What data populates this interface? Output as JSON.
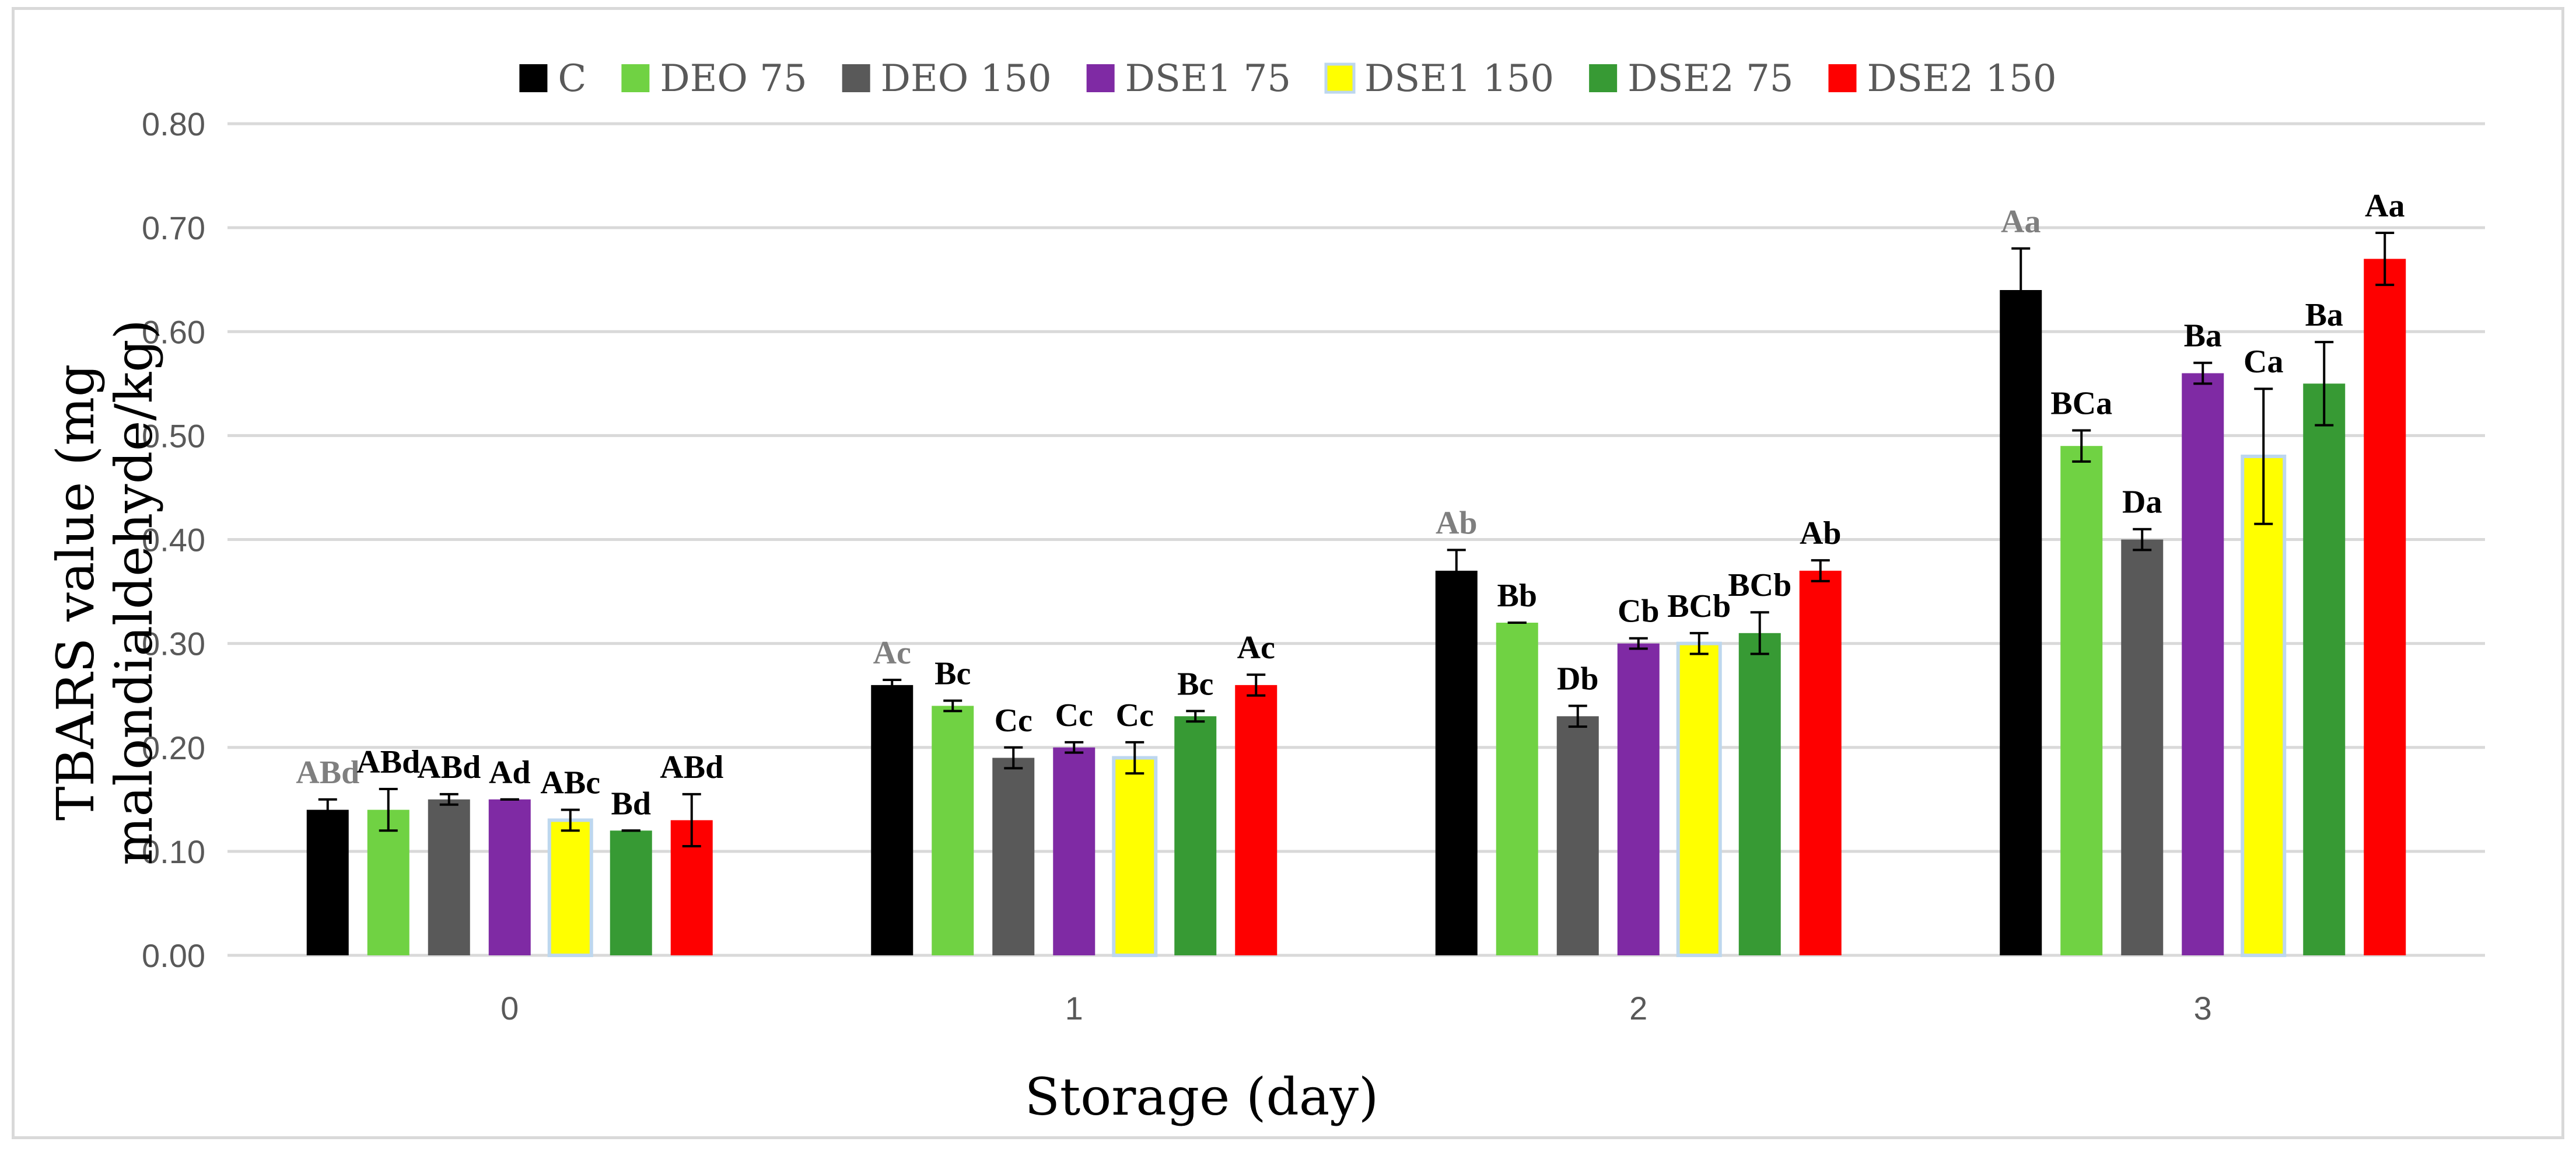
{
  "chart_data": {
    "type": "bar",
    "title": "",
    "xlabel": "Storage (day)",
    "ylabel_lines": [
      "TBARS value (mg",
      "malondialdehyde/kg)"
    ],
    "categories": [
      "0",
      "1",
      "2",
      "3"
    ],
    "ylim": [
      0,
      0.8
    ],
    "yticks": [
      "0.00",
      "0.10",
      "0.20",
      "0.30",
      "0.40",
      "0.50",
      "0.60",
      "0.70",
      "0.80"
    ],
    "grid": true,
    "legend_position": "top",
    "series": [
      {
        "name": "C",
        "color": "#000000",
        "values": [
          0.14,
          0.26,
          0.37,
          0.64
        ],
        "errors": [
          0.01,
          0.005,
          0.02,
          0.04
        ],
        "labels": [
          "ABd",
          "Ac",
          "Ab",
          "Aa"
        ],
        "label_color": "#7f7f7f"
      },
      {
        "name": "DEO  75",
        "color": "#70d243",
        "values": [
          0.14,
          0.24,
          0.32,
          0.49
        ],
        "errors": [
          0.02,
          0.005,
          0.0,
          0.015
        ],
        "labels": [
          "ABd",
          "Bc",
          "Bb",
          "BCa"
        ],
        "label_color": "#000000"
      },
      {
        "name": "DEO  150",
        "color": "#595959",
        "values": [
          0.15,
          0.19,
          0.23,
          0.4
        ],
        "errors": [
          0.005,
          0.01,
          0.01,
          0.01
        ],
        "labels": [
          "ABd",
          "Cc",
          "Db",
          "Da"
        ],
        "label_color": "#000000"
      },
      {
        "name": "DSE1  75",
        "color": "#7f2aa4",
        "values": [
          0.15,
          0.2,
          0.3,
          0.56
        ],
        "errors": [
          0.0,
          0.005,
          0.005,
          0.01
        ],
        "labels": [
          "Ad",
          "Cc",
          "Cb",
          "Ba"
        ],
        "label_color": "#000000"
      },
      {
        "name": "DSE1  150",
        "color": "#ffff00",
        "values": [
          0.13,
          0.19,
          0.3,
          0.48
        ],
        "errors": [
          0.01,
          0.015,
          0.01,
          0.065
        ],
        "labels": [
          "ABc",
          "Cc",
          "BCb",
          "Ca"
        ],
        "label_color": "#000000"
      },
      {
        "name": "DSE2  75",
        "color": "#379a34",
        "values": [
          0.12,
          0.23,
          0.31,
          0.55
        ],
        "errors": [
          0.0,
          0.005,
          0.02,
          0.04
        ],
        "labels": [
          "Bd",
          "Bc",
          "BCb",
          "Ba"
        ],
        "label_color": "#000000"
      },
      {
        "name": "DSE2  150",
        "color": "#fe0000",
        "values": [
          0.13,
          0.26,
          0.37,
          0.67
        ],
        "errors": [
          0.025,
          0.01,
          0.01,
          0.025
        ],
        "labels": [
          "ABd",
          "Ac",
          "Ab",
          "Aa"
        ],
        "label_color": "#000000"
      }
    ]
  }
}
